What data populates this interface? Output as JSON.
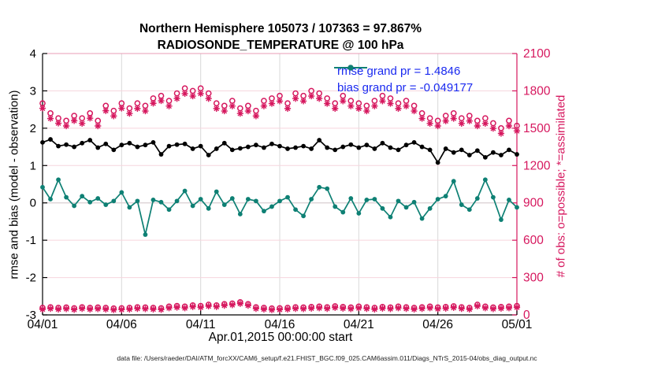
{
  "header": {
    "title_line1": "Northern Hemisphere 105073 / 107363 = 97.867%",
    "title_line2": "RADIOSONDE_TEMPERATURE @ 100 hPa"
  },
  "footer": {
    "data_file": "data file: /Users/raeder/DAI/ATM_forcXX/CAM6_setup/f.e21.FHIST_BGC.f09_025.CAM6assim.011/Diags_NTrS_2015-04/obs_diag_output.nc"
  },
  "colors": {
    "magenta": "#d6175e",
    "teal": "#0e8074",
    "black": "#000000",
    "legend_text": "#1a2af0",
    "grid_horizontal": "#f6d5dd",
    "grid_vertical": "#d9d9d9",
    "zero_line": "#c8c8c8",
    "top_spine": "#e89cb4"
  },
  "chart_data": {
    "type": "line",
    "title": "Northern Hemisphere 105073 / 107363 = 97.867%",
    "subtitle": "RADIOSONDE_TEMPERATURE @ 100 hPa",
    "xlabel": "Apr.01,2015 00:00:00 start",
    "ylabel_left": "rmse and bias (model - observation)",
    "ylabel_right": "# of obs: o=possible; *=assimilated",
    "xlim": [
      0,
      60
    ],
    "ylim_left": [
      -3,
      4
    ],
    "ylim_right": [
      0,
      2100
    ],
    "grid": true,
    "legend_position": "top-right-inside",
    "x_ticks": [
      {
        "pos": 0,
        "label": "04/01"
      },
      {
        "pos": 10,
        "label": "04/06"
      },
      {
        "pos": 20,
        "label": "04/11"
      },
      {
        "pos": 30,
        "label": "04/16"
      },
      {
        "pos": 40,
        "label": "04/21"
      },
      {
        "pos": 50,
        "label": "04/26"
      },
      {
        "pos": 60,
        "label": "05/01"
      }
    ],
    "y_ticks_left": [
      -3,
      -2,
      -1,
      0,
      1,
      2,
      3,
      4
    ],
    "y_ticks_right": [
      0,
      300,
      600,
      900,
      1200,
      1500,
      1800,
      2100
    ],
    "legend": [
      {
        "name": "rmse",
        "label": "rmse grand pr = 1.4846"
      },
      {
        "name": "bias",
        "label": "bias grand pr = -0.049177"
      }
    ],
    "series": [
      {
        "name": "rmse",
        "axis": "left",
        "color": "#000000",
        "marker": "dot",
        "line": true,
        "values": [
          1.62,
          1.7,
          1.52,
          1.56,
          1.5,
          1.6,
          1.68,
          1.48,
          1.58,
          1.42,
          1.55,
          1.6,
          1.5,
          1.55,
          1.62,
          1.3,
          1.52,
          1.56,
          1.58,
          1.45,
          1.52,
          1.28,
          1.45,
          1.6,
          1.42,
          1.46,
          1.5,
          1.55,
          1.48,
          1.58,
          1.52,
          1.45,
          1.48,
          1.52,
          1.45,
          1.68,
          1.48,
          1.42,
          1.5,
          1.56,
          1.48,
          1.55,
          1.45,
          1.6,
          1.48,
          1.42,
          1.55,
          1.62,
          1.5,
          1.42,
          1.08,
          1.45,
          1.35,
          1.42,
          1.28,
          1.4,
          1.22,
          1.35,
          1.28,
          1.42,
          1.3
        ]
      },
      {
        "name": "bias",
        "axis": "left",
        "color": "#0e8074",
        "marker": "dot",
        "line": true,
        "values": [
          0.42,
          0.1,
          0.62,
          0.15,
          -0.08,
          0.18,
          0.02,
          0.12,
          -0.05,
          0.05,
          0.28,
          -0.12,
          0.05,
          -0.85,
          0.08,
          0.02,
          -0.18,
          0.05,
          0.32,
          -0.08,
          0.1,
          -0.15,
          0.3,
          -0.05,
          0.12,
          -0.3,
          0.1,
          0.05,
          -0.22,
          -0.1,
          0.05,
          0.15,
          -0.18,
          -0.35,
          0.1,
          0.42,
          0.38,
          -0.1,
          -0.25,
          0.12,
          -0.28,
          0.08,
          0.1,
          -0.15,
          -0.38,
          0.05,
          -0.12,
          0.02,
          -0.42,
          -0.15,
          0.1,
          0.18,
          0.58,
          -0.05,
          -0.18,
          0.12,
          0.62,
          0.15,
          -0.45,
          0.08,
          -0.12
        ]
      },
      {
        "name": "obs_possible",
        "axis": "right",
        "color": "#d6175e",
        "marker": "circle-open",
        "line": false,
        "values": [
          1700,
          1620,
          1580,
          1560,
          1600,
          1580,
          1620,
          1560,
          1680,
          1640,
          1700,
          1660,
          1700,
          1680,
          1740,
          1760,
          1720,
          1780,
          1820,
          1800,
          1820,
          1780,
          1700,
          1680,
          1720,
          1660,
          1680,
          1640,
          1720,
          1740,
          1760,
          1700,
          1780,
          1760,
          1800,
          1780,
          1740,
          1700,
          1760,
          1720,
          1700,
          1680,
          1720,
          1760,
          1740,
          1700,
          1720,
          1680,
          1620,
          1580,
          1560,
          1600,
          1620,
          1580,
          1600,
          1560,
          1580,
          1540,
          1500,
          1560,
          1520
        ]
      },
      {
        "name": "obs_assimilated",
        "axis": "right",
        "color": "#d6175e",
        "marker": "asterisk",
        "line": false,
        "values": [
          1660,
          1578,
          1540,
          1518,
          1560,
          1538,
          1580,
          1518,
          1640,
          1598,
          1660,
          1618,
          1658,
          1638,
          1700,
          1720,
          1678,
          1738,
          1778,
          1758,
          1778,
          1738,
          1658,
          1638,
          1678,
          1618,
          1638,
          1598,
          1678,
          1698,
          1718,
          1658,
          1738,
          1718,
          1758,
          1738,
          1698,
          1658,
          1718,
          1678,
          1658,
          1638,
          1678,
          1718,
          1698,
          1658,
          1678,
          1638,
          1578,
          1538,
          1518,
          1558,
          1578,
          1538,
          1558,
          1518,
          1538,
          1498,
          1458,
          1518,
          1478
        ]
      },
      {
        "name": "obs_count_lower_possible",
        "axis": "right",
        "color": "#d6175e",
        "marker": "circle-open",
        "line": false,
        "values": [
          57,
          62,
          57,
          60,
          54,
          62,
          57,
          60,
          57,
          52,
          54,
          57,
          62,
          60,
          57,
          54,
          67,
          72,
          67,
          77,
          72,
          82,
          77,
          87,
          92,
          102,
          87,
          62,
          57,
          52,
          54,
          57,
          62,
          60,
          64,
          67,
          62,
          70,
          64,
          60,
          67,
          62,
          57,
          64,
          60,
          67,
          62,
          57,
          62,
          67,
          60,
          64,
          70,
          62,
          57,
          82,
          67,
          60,
          64,
          67,
          72
        ]
      },
      {
        "name": "obs_count_lower_assimilated",
        "axis": "right",
        "color": "#d6175e",
        "marker": "asterisk",
        "line": false,
        "values": [
          45,
          50,
          45,
          48,
          42,
          50,
          45,
          48,
          45,
          40,
          42,
          45,
          50,
          48,
          45,
          42,
          55,
          60,
          55,
          65,
          60,
          70,
          65,
          75,
          80,
          90,
          75,
          50,
          45,
          40,
          42,
          45,
          50,
          48,
          52,
          55,
          50,
          58,
          52,
          48,
          55,
          50,
          45,
          52,
          48,
          55,
          50,
          45,
          50,
          55,
          48,
          52,
          58,
          50,
          45,
          70,
          55,
          48,
          52,
          55,
          60
        ]
      }
    ]
  }
}
